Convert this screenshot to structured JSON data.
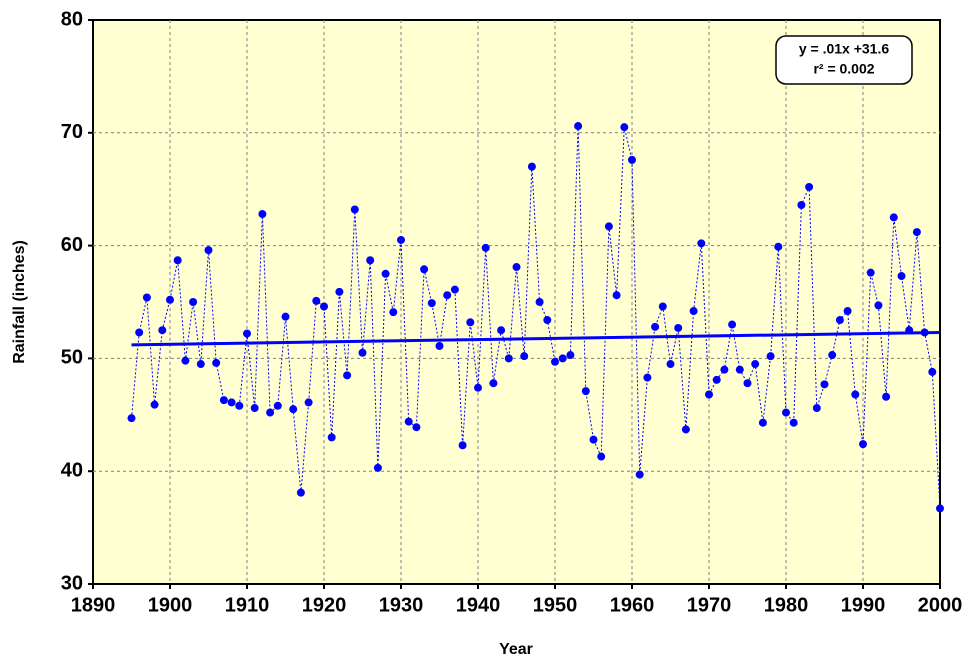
{
  "chart_data": {
    "type": "scatter",
    "x_label": "Year",
    "y_label": "Rainfall  (inches)",
    "annotation": {
      "equation": "y = .01x +31.6",
      "r2": "r² = 0.002"
    },
    "xlim": [
      1890,
      2000
    ],
    "xticks": [
      1890,
      1900,
      1910,
      1920,
      1930,
      1940,
      1950,
      1960,
      1970,
      1980,
      1990,
      2000
    ],
    "ylim": [
      30,
      80
    ],
    "yticks": [
      30,
      40,
      50,
      60,
      70,
      80
    ],
    "grid": true,
    "background": "#ffffd2",
    "series": [
      {
        "color": "#0000ff",
        "x": [
          1895,
          1896,
          1897,
          1898,
          1899,
          1900,
          1901,
          1902,
          1903,
          1904,
          1905,
          1906,
          1907,
          1908,
          1909,
          1910,
          1911,
          1912,
          1913,
          1914,
          1915,
          1916,
          1917,
          1918,
          1919,
          1920,
          1921,
          1922,
          1923,
          1924,
          1925,
          1926,
          1927,
          1928,
          1929,
          1930,
          1931,
          1932,
          1933,
          1934,
          1935,
          1936,
          1937,
          1938,
          1939,
          1940,
          1941,
          1942,
          1943,
          1944,
          1945,
          1946,
          1947,
          1948,
          1949,
          1950,
          1951,
          1952,
          1953,
          1954,
          1955,
          1956,
          1957,
          1958,
          1959,
          1960,
          1961,
          1962,
          1963,
          1964,
          1965,
          1966,
          1967,
          1968,
          1969,
          1970,
          1971,
          1972,
          1973,
          1974,
          1975,
          1976,
          1977,
          1978,
          1979,
          1980,
          1981,
          1982,
          1983,
          1984,
          1985,
          1986,
          1987,
          1988,
          1989,
          1990,
          1991,
          1992,
          1993,
          1994,
          1995,
          1996,
          1997,
          1998,
          1999,
          2000
        ],
        "values": [
          44.7,
          52.3,
          55.4,
          45.9,
          52.5,
          55.2,
          58.7,
          49.8,
          55.0,
          49.5,
          59.6,
          49.6,
          46.3,
          46.1,
          45.8,
          52.2,
          45.6,
          62.8,
          45.2,
          45.8,
          53.7,
          45.5,
          38.1,
          46.1,
          55.1,
          54.6,
          43.0,
          55.9,
          48.5,
          63.2,
          50.5,
          58.7,
          40.3,
          57.5,
          54.1,
          60.5,
          44.4,
          43.9,
          57.9,
          54.9,
          51.1,
          55.6,
          56.1,
          42.3,
          53.2,
          47.4,
          59.8,
          47.8,
          52.5,
          50.0,
          58.1,
          50.2,
          67.0,
          55.0,
          53.4,
          49.7,
          50.0,
          50.3,
          70.6,
          47.1,
          42.8,
          41.3,
          61.7,
          55.6,
          70.5,
          67.6,
          39.7,
          48.3,
          52.8,
          54.6,
          49.5,
          52.7,
          43.7,
          54.2,
          60.2,
          46.8,
          48.1,
          49.0,
          53.0,
          49.0,
          47.8,
          49.5,
          44.3,
          50.2,
          59.9,
          45.2,
          44.3,
          63.6,
          65.2,
          45.6,
          47.7,
          50.3,
          53.4,
          54.2,
          46.8,
          42.4,
          57.6,
          54.7,
          46.6,
          62.5,
          57.3,
          52.5,
          61.2,
          52.3,
          48.8,
          36.7
        ]
      },
      {
        "color": "#0000ff",
        "x": [
          1895,
          2000
        ],
        "values": [
          51.2,
          52.3
        ]
      }
    ]
  }
}
